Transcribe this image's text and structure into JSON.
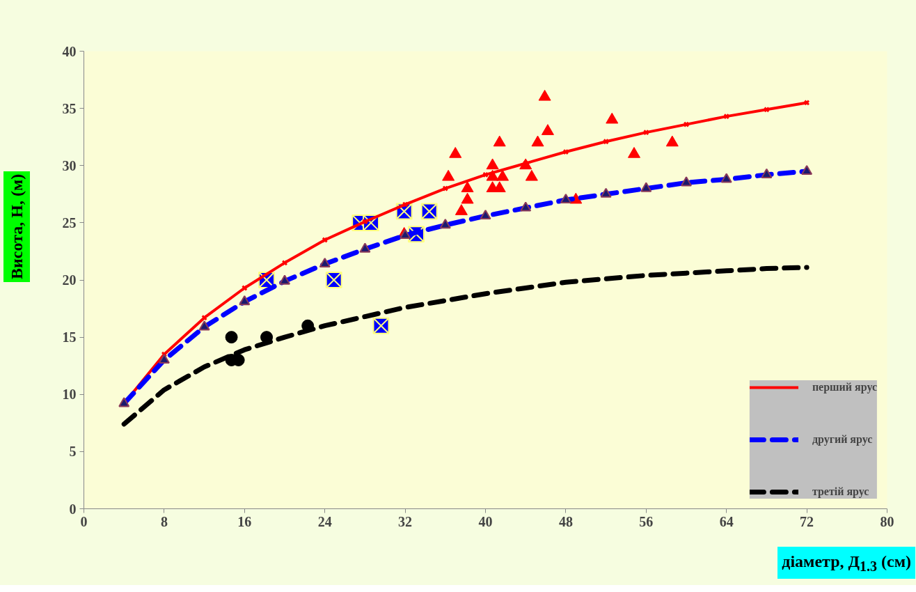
{
  "chart_data": {
    "type": "line",
    "xlabel": "діаметр, Д$_{1.3}$ (см)",
    "ylabel": "Висота, Н, (м)",
    "xlim": [
      0,
      80
    ],
    "ylim": [
      0,
      40
    ],
    "xticks": [
      0,
      8,
      16,
      24,
      32,
      40,
      48,
      56,
      64,
      72,
      80
    ],
    "yticks": [
      0,
      5,
      10,
      15,
      20,
      25,
      30,
      35,
      40
    ],
    "grid": false,
    "legend": "right",
    "series": [
      {
        "type": "scatter",
        "color": "#ff0000",
        "marker": "triangle",
        "x": [
          31.9,
          36.3,
          37.0,
          37.6,
          38.2,
          38.2,
          40.7,
          40.7,
          40.7,
          41.4,
          41.4,
          41.7,
          44.0,
          44.6,
          45.2,
          45.9,
          46.2,
          49.0,
          52.6,
          54.8,
          58.6
        ],
        "values": [
          24,
          29,
          31,
          26,
          27,
          28,
          30,
          29,
          28,
          28,
          32,
          29,
          30,
          29,
          32,
          36,
          33,
          27,
          34,
          31,
          32
        ]
      },
      {
        "type": "scatter",
        "color": "#0000ff",
        "marker": "square",
        "x": [
          18.2,
          24.9,
          27.5,
          28.6,
          29.6,
          31.9,
          33.1,
          34.4
        ],
        "values": [
          20,
          20,
          25,
          25,
          16,
          26,
          24,
          26
        ]
      },
      {
        "type": "scatter",
        "color": "#000000",
        "marker": "circle",
        "x": [
          14.7,
          14.7,
          15.4,
          18.2,
          22.3
        ],
        "values": [
          15,
          13,
          13,
          15,
          16
        ]
      },
      {
        "type": "line",
        "name": "перший ярус",
        "color": "#ff0000",
        "marker": "cross",
        "line_style": "solid",
        "x": [
          4,
          8,
          12,
          16,
          20,
          24,
          28,
          32,
          36,
          40,
          44,
          48,
          52,
          56,
          60,
          64,
          68,
          72
        ],
        "values": [
          9.2,
          13.5,
          16.7,
          19.3,
          21.5,
          23.5,
          25.1,
          26.6,
          28.0,
          29.2,
          30.2,
          31.2,
          32.1,
          32.9,
          33.6,
          34.3,
          34.9,
          35.5
        ]
      },
      {
        "type": "line",
        "name": "другий ярус",
        "color": "#0000ff",
        "marker": "triangle",
        "line_style": "dashed",
        "x": [
          4,
          8,
          12,
          16,
          20,
          24,
          28,
          32,
          36,
          40,
          44,
          48,
          52,
          56,
          60,
          64,
          68,
          72
        ],
        "values": [
          9.2,
          13.0,
          15.9,
          18.1,
          19.9,
          21.4,
          22.7,
          23.9,
          24.8,
          25.6,
          26.3,
          27.0,
          27.5,
          28.0,
          28.5,
          28.8,
          29.2,
          29.5
        ]
      },
      {
        "type": "line",
        "name": "третій ярус",
        "color": "#000000",
        "marker": "none",
        "line_style": "dashed",
        "x": [
          4,
          8,
          12,
          16,
          20,
          24,
          28,
          32,
          36,
          40,
          44,
          48,
          52,
          56,
          60,
          64,
          68,
          72
        ],
        "values": [
          7.4,
          10.4,
          12.4,
          13.9,
          15.0,
          16.0,
          16.8,
          17.6,
          18.2,
          18.8,
          19.3,
          19.8,
          20.1,
          20.4,
          20.6,
          20.8,
          21.0,
          21.1
        ]
      }
    ]
  }
}
